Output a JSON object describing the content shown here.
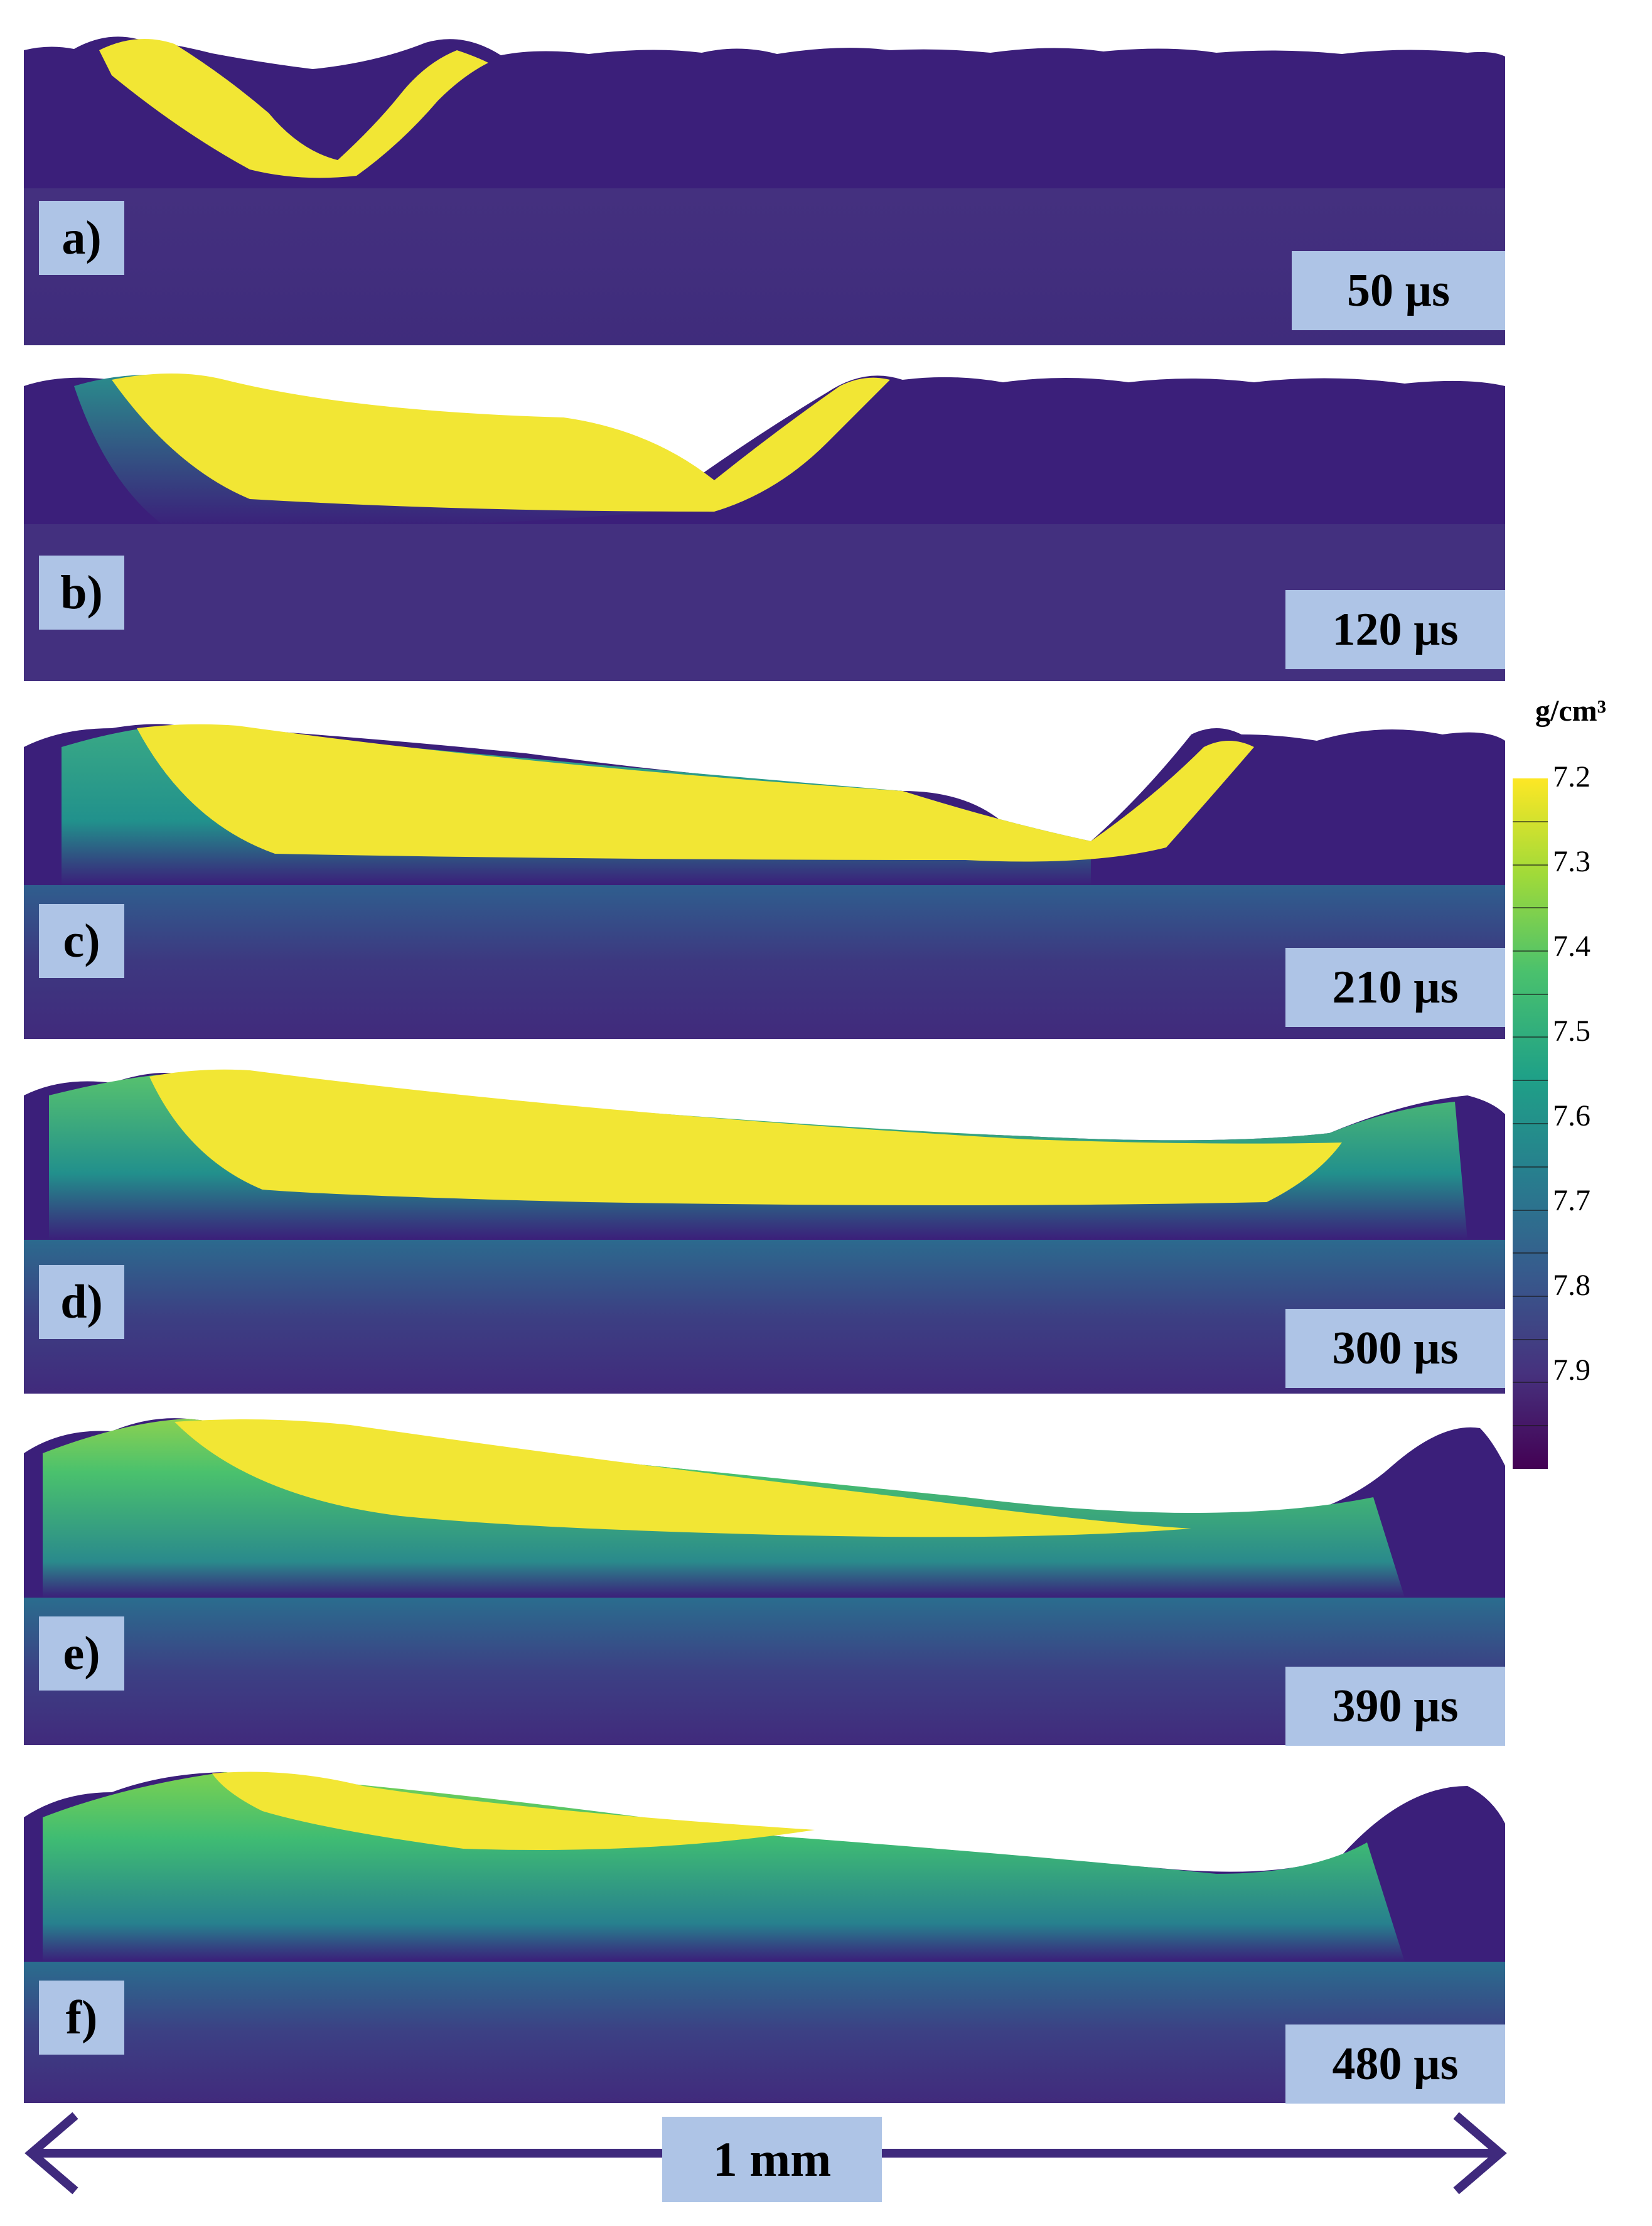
{
  "panels": [
    {
      "letter": "a)",
      "time": "50 µs"
    },
    {
      "letter": "b)",
      "time": "120 µs"
    },
    {
      "letter": "c)",
      "time": "210 µs"
    },
    {
      "letter": "d)",
      "time": "300 µs"
    },
    {
      "letter": "e)",
      "time": "390 µs"
    },
    {
      "letter": "f)",
      "time": "480 µs"
    }
  ],
  "colorbar": {
    "unit": "g/cm³",
    "ticks": [
      "7.2",
      "7.3",
      "7.4",
      "7.5",
      "7.6",
      "7.7",
      "7.8",
      "7.9"
    ],
    "colors": [
      "#fde725",
      "#a0da39",
      "#4ac16d",
      "#1fa187",
      "#277f8e",
      "#365c8d",
      "#46327e",
      "#440154"
    ]
  },
  "scale_bar": {
    "label": "1 mm"
  },
  "colors": {
    "powder": "#3b1f7a",
    "substrate": "#412f80",
    "melt": "#f2e634",
    "label_bg": "#aec4e6",
    "arrow": "#3f2a7d"
  }
}
